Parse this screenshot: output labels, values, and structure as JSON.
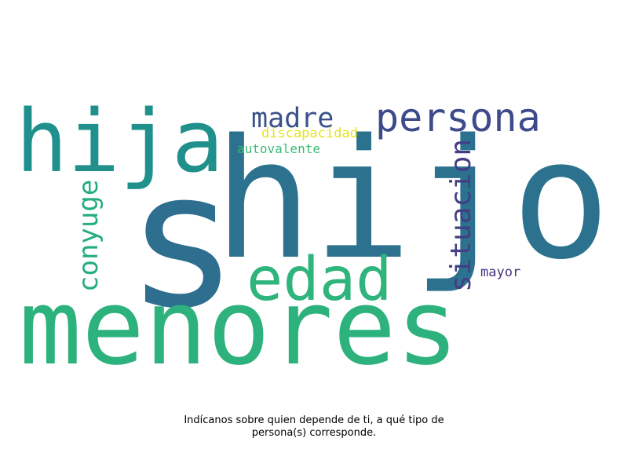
{
  "wordcloud": {
    "words": [
      {
        "text": "s",
        "color": "#2e6e8e"
      },
      {
        "text": "hijo",
        "color": "#2c728e"
      },
      {
        "text": "menores",
        "color": "#2db27d"
      },
      {
        "text": "hija",
        "color": "#20908d"
      },
      {
        "text": "persona",
        "color": "#3e4a89"
      },
      {
        "text": "madre",
        "color": "#3b528b"
      },
      {
        "text": "edad",
        "color": "#2fb47c"
      },
      {
        "text": "situacion",
        "color": "#433e85"
      },
      {
        "text": "conyuge",
        "color": "#25ac82"
      },
      {
        "text": "discapacidad",
        "color": "#e5e419"
      },
      {
        "text": "autovalente",
        "color": "#3bbb75"
      },
      {
        "text": "mayor",
        "color": "#46327e"
      }
    ]
  },
  "caption": {
    "line1": "Indícanos sobre quien depende de ti, a qué tipo de",
    "line2": "persona(s) corresponde."
  }
}
